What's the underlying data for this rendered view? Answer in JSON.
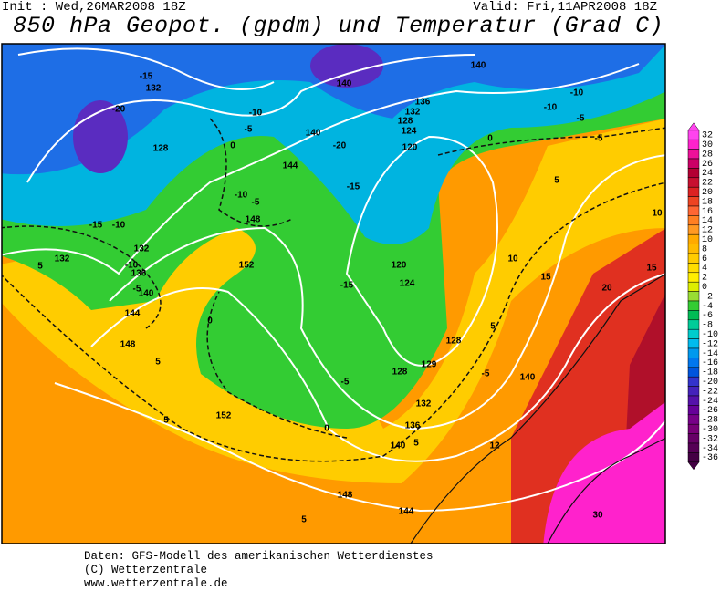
{
  "header": {
    "init": "Init : Wed,26MAR2008 18Z",
    "valid": "Valid: Fri,11APR2008 18Z",
    "title": "850 hPa Geopot. (gpdm) und Temperatur (Grad C)"
  },
  "map": {
    "contour_labels": [
      "-15",
      "132",
      "-20",
      "140",
      "140",
      "-10",
      "-10",
      "-5",
      "136",
      "132",
      "128",
      "124",
      "-10",
      "-5",
      "0",
      "140",
      "-20",
      "0",
      "-5",
      "120",
      "128",
      "144",
      "-15",
      "5",
      "-10",
      "-5",
      "148",
      "-15",
      "-10",
      "10",
      "132",
      "132",
      "10",
      "5",
      "-10",
      "136",
      "152",
      "120",
      "15",
      "15",
      "-5",
      "140",
      "-15",
      "124",
      "20",
      "144",
      "0",
      "5",
      "148",
      "128",
      "5",
      "129",
      "-5",
      "140",
      "128",
      "-5",
      "132",
      "5",
      "152",
      "0",
      "136",
      "140",
      "5",
      "12",
      "148",
      "144",
      "5",
      "30"
    ]
  },
  "colorbar": {
    "labels": [
      "32",
      "30",
      "28",
      "26",
      "24",
      "22",
      "20",
      "18",
      "16",
      "14",
      "12",
      "10",
      "8",
      "6",
      "4",
      "2",
      "0",
      "-2",
      "-4",
      "-6",
      "-8",
      "-10",
      "-12",
      "-14",
      "-16",
      "-18",
      "-20",
      "-22",
      "-24",
      "-26",
      "-28",
      "-30",
      "-32",
      "-34",
      "-36"
    ],
    "colors": [
      "#ff44ee",
      "#ff22cc",
      "#ee1199",
      "#cc0066",
      "#b30033",
      "#c81030",
      "#dd2222",
      "#ee4422",
      "#ff6633",
      "#ff7f22",
      "#ff9922",
      "#ffaa00",
      "#ffbb00",
      "#ffcc00",
      "#ffdd00",
      "#ffee00",
      "#ddee00",
      "#99dd33",
      "#33cc33",
      "#00bb55",
      "#00cc99",
      "#00cccc",
      "#00bbee",
      "#0099ee",
      "#0077ee",
      "#0055dd",
      "#3333cc",
      "#4422bb",
      "#5511aa",
      "#660099",
      "#770088",
      "#770077",
      "#660066",
      "#550055",
      "#440044"
    ]
  },
  "footer": {
    "lines": [
      "Daten: GFS-Modell des amerikanischen Wetterdienstes",
      "(C) Wetterzentrale",
      "www.wetterzentrale.de"
    ]
  }
}
